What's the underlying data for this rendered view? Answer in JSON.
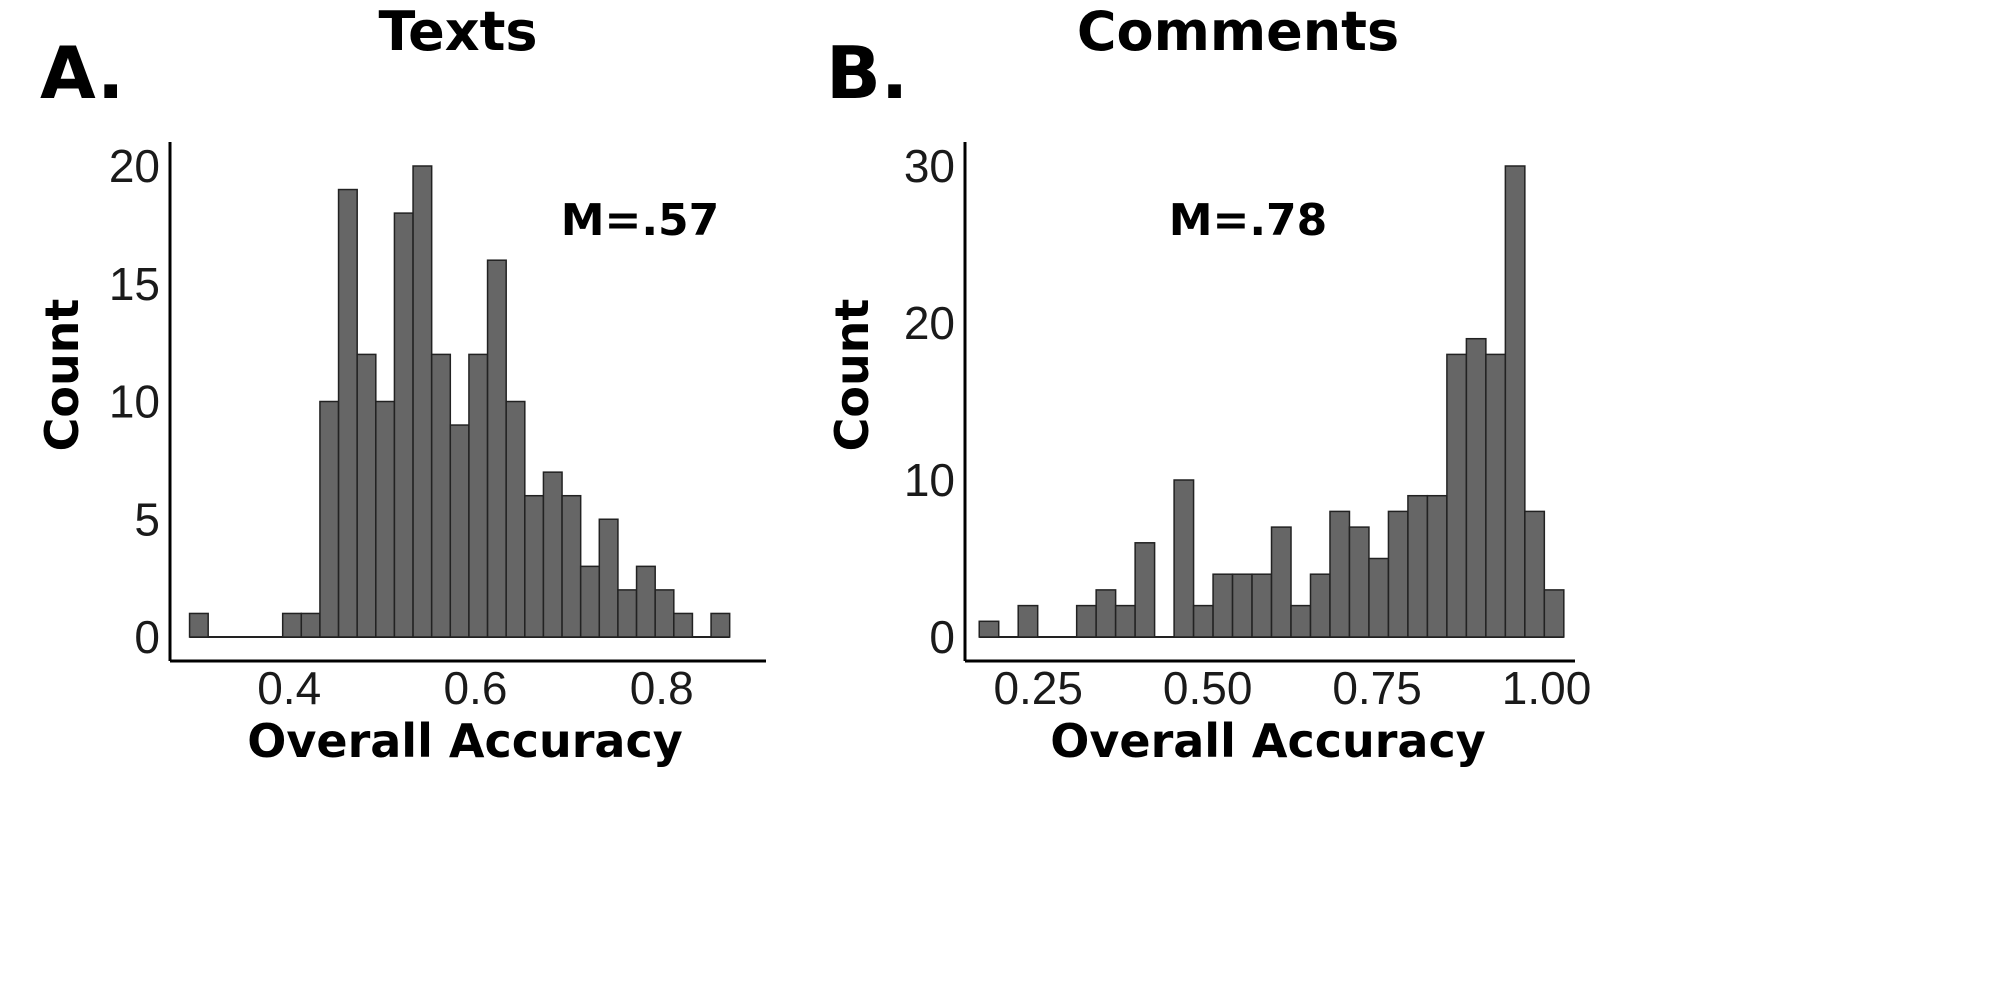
{
  "chart_data": [
    {
      "type": "bar",
      "panel_letter": "A.",
      "title": "Texts",
      "xlabel": "Overall Accuracy",
      "ylabel": "Count",
      "annotation": "M=.57",
      "xlim": [
        0.272,
        0.912
      ],
      "ylim": [
        0,
        20.5
      ],
      "xticks": [
        "0.4",
        "0.6",
        "0.8"
      ],
      "yticks": [
        "0",
        "5",
        "10",
        "15",
        "20"
      ],
      "bin_start": 0.293,
      "bin_width": 0.02,
      "values": [
        1,
        0,
        0,
        0,
        0,
        1,
        1,
        10,
        19,
        12,
        10,
        18,
        20,
        12,
        9,
        12,
        16,
        10,
        6,
        7,
        6,
        3,
        5,
        2,
        3,
        2,
        1,
        0,
        1
      ],
      "bar_color": "#666666",
      "grid": false
    },
    {
      "type": "bar",
      "panel_letter": "B.",
      "title": "Comments",
      "xlabel": "Overall Accuracy",
      "ylabel": "Count",
      "annotation": "M=.78",
      "xlim": [
        0.142,
        1.042
      ],
      "ylim": [
        0,
        30.5
      ],
      "xticks": [
        "0.25",
        "0.50",
        "0.75",
        "1.00"
      ],
      "yticks": [
        "0",
        "10",
        "20",
        "30"
      ],
      "bin_start": 0.163,
      "bin_width": 0.02875,
      "values": [
        1,
        0,
        2,
        0,
        0,
        2,
        3,
        2,
        6,
        0,
        10,
        2,
        4,
        4,
        4,
        7,
        2,
        4,
        8,
        7,
        5,
        8,
        9,
        9,
        18,
        19,
        18,
        30,
        8,
        3
      ],
      "bar_color": "#666666",
      "grid": false
    }
  ]
}
